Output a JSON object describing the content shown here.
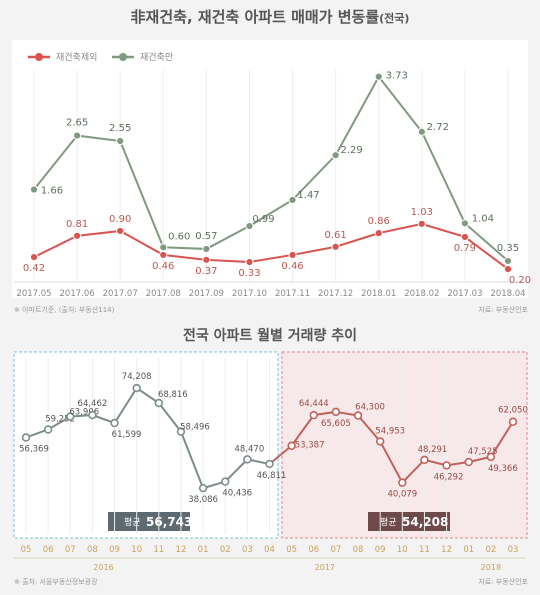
{
  "chart_data": [
    {
      "type": "line",
      "title": "非재건축, 재건축 아파트 매매가 변동률",
      "title_suffix": "(전국)",
      "categories": [
        "2017.05",
        "2017.06",
        "2017.07",
        "2017.08",
        "2017.09",
        "2017.10",
        "2017.11",
        "2017.12",
        "2018.01",
        "2018.02",
        "2017.03",
        "2018.04"
      ],
      "series": [
        {
          "name": "재건축제외",
          "color": "#d9534f",
          "values": [
            0.42,
            0.81,
            0.9,
            0.46,
            0.37,
            0.33,
            0.46,
            0.61,
            0.86,
            1.03,
            0.79,
            0.2
          ]
        },
        {
          "name": "재건축만",
          "color": "#7f9a7f",
          "values": [
            1.66,
            2.65,
            2.55,
            0.6,
            0.57,
            0.99,
            1.47,
            2.29,
            3.73,
            2.72,
            1.04,
            0.35
          ]
        }
      ],
      "legend_position": "top-left",
      "ylim": [
        0,
        4
      ],
      "note_left": "※ 아파트기준, (출처: 부동산114)",
      "note_right": "자료: 부동산인포"
    },
    {
      "type": "line",
      "title": "전국 아파트 월별 거래량 추이",
      "categories": [
        "05",
        "06",
        "07",
        "08",
        "09",
        "10",
        "11",
        "12",
        "01",
        "02",
        "03",
        "04",
        "05",
        "06",
        "07",
        "08",
        "09",
        "10",
        "11",
        "12",
        "01",
        "02",
        "03"
      ],
      "year_labels": [
        "2016",
        "2017",
        "2018"
      ],
      "values": [
        56369,
        59252,
        63906,
        64462,
        61599,
        74208,
        68816,
        58496,
        38086,
        40436,
        48470,
        46811,
        53387,
        64444,
        65605,
        64300,
        54953,
        40079,
        48291,
        46292,
        47525,
        49366,
        62050
      ],
      "value_labels": [
        "56,369",
        "59,252",
        "63,906",
        "64,462",
        "61,599",
        "74,208",
        "68,816",
        "58,496",
        "38,086",
        "40,436",
        "48,470",
        "46,811",
        "53,387",
        "64,444",
        "65,605",
        "64,300",
        "54,953",
        "40,079",
        "48,291",
        "46,292",
        "47,525",
        "49,366",
        "62,050"
      ],
      "ylim": [
        32000,
        80000
      ],
      "colors": {
        "period1": "#7f8c8d",
        "period2": "#c0625c"
      },
      "averages": [
        {
          "label": "평균",
          "value": "56,743"
        },
        {
          "label": "평균",
          "value": "54,208"
        }
      ],
      "note_left": "※ 출처: 서울부동산정보광장",
      "note_right": "자료: 부동산인포"
    }
  ]
}
